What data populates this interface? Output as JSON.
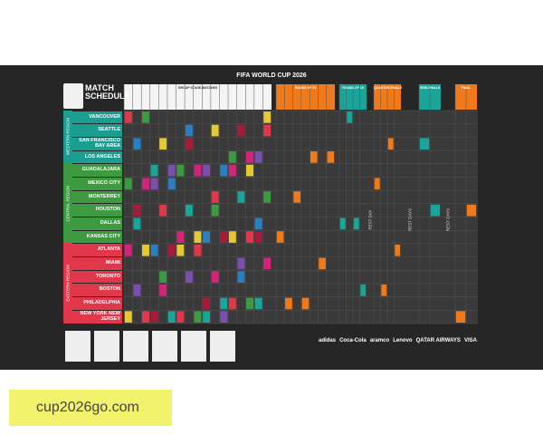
{
  "header": {
    "title": "FIFA WORLD CUP 2026",
    "subtitle": "MATCH SCHEDULE"
  },
  "stages": [
    "GROUP STAGE MATCHES",
    "ROUND OF 32",
    "ROUND OF 16",
    "QUARTER-FINALS",
    "SEMI-FINALS",
    "FINAL"
  ],
  "regions": [
    {
      "name": "WESTERN REGION",
      "cities": [
        "VANCOUVER",
        "SEATTLE",
        "SAN FRANCISCO BAY AREA",
        "LOS ANGELES"
      ]
    },
    {
      "name": "CENTRAL REGION",
      "cities": [
        "GUADALAJARA",
        "MEXICO CITY",
        "MONTERREY",
        "HOUSTON",
        "DALLAS",
        "KANSAS CITY"
      ]
    },
    {
      "name": "EASTERN REGION",
      "cities": [
        "ATLANTA",
        "MIAMI",
        "TORONTO",
        "BOSTON",
        "PHILADELPHIA",
        "NEW YORK NEW JERSEY"
      ]
    }
  ],
  "rest_labels": [
    "REST DAY",
    "REST DAYS",
    "REST DAYS"
  ],
  "sponsors": [
    "adidas",
    "Coca-Cola",
    "aramco",
    "Lenovo",
    "QATAR AIRWAYS",
    "VISA"
  ],
  "watermark": "cup2026go.com"
}
